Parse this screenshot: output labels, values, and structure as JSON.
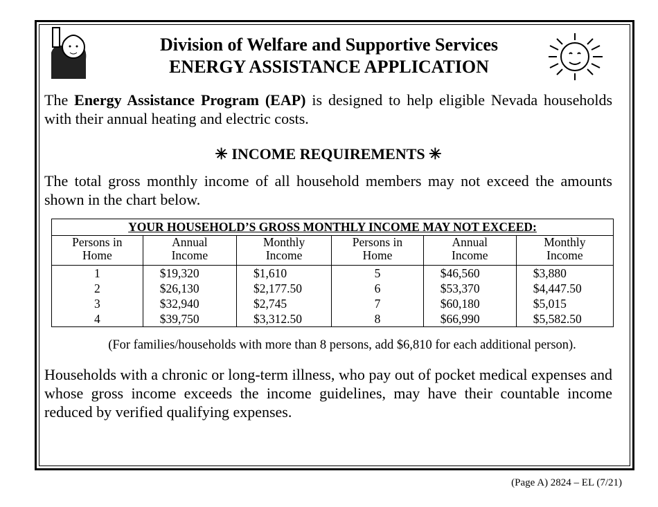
{
  "header": {
    "title": "Division of Welfare and Supportive Services",
    "subtitle": "ENERGY ASSISTANCE APPLICATION"
  },
  "intro": {
    "before": "The",
    "bold": "Energy Assistance Program (EAP)",
    "after": "is designed to help eligible Nevada households with their annual heating and electric costs."
  },
  "section": {
    "heading": "✳ INCOME REQUIREMENTS ✳",
    "text": "The total gross monthly income of all household members may not exceed the amounts shown in the chart below."
  },
  "table": {
    "caption": "YOUR HOUSEHOLD’S GROSS MONTHLY INCOME MAY NOT EXCEED:",
    "headers": [
      "Persons in Home",
      "Annual Income",
      "Monthly Income",
      "Persons in Home",
      "Annual Income",
      "Monthly Income"
    ],
    "rows": [
      [
        "1",
        "$19,320",
        "$1,610",
        "5",
        "$46,560",
        "$3,880"
      ],
      [
        "2",
        "$26,130",
        "$2,177.50",
        "6",
        "$53,370",
        "$4,447.50"
      ],
      [
        "3",
        "$32,940",
        "$2,745",
        "7",
        "$60,180",
        "$5,015"
      ],
      [
        "4",
        "$39,750",
        "$3,312.50",
        "8",
        "$66,990",
        "$5,582.50"
      ]
    ]
  },
  "note": "(For families/households with more than 8 persons, add $6,810 for each additional person).",
  "medical": "Households with a chronic or long-term illness, who pay out of pocket medical expenses and whose gross income exceeds the income guidelines, may have their countable income reduced by verified qualifying expenses.",
  "footer": "(Page A) 2824 – EL (7/21)"
}
